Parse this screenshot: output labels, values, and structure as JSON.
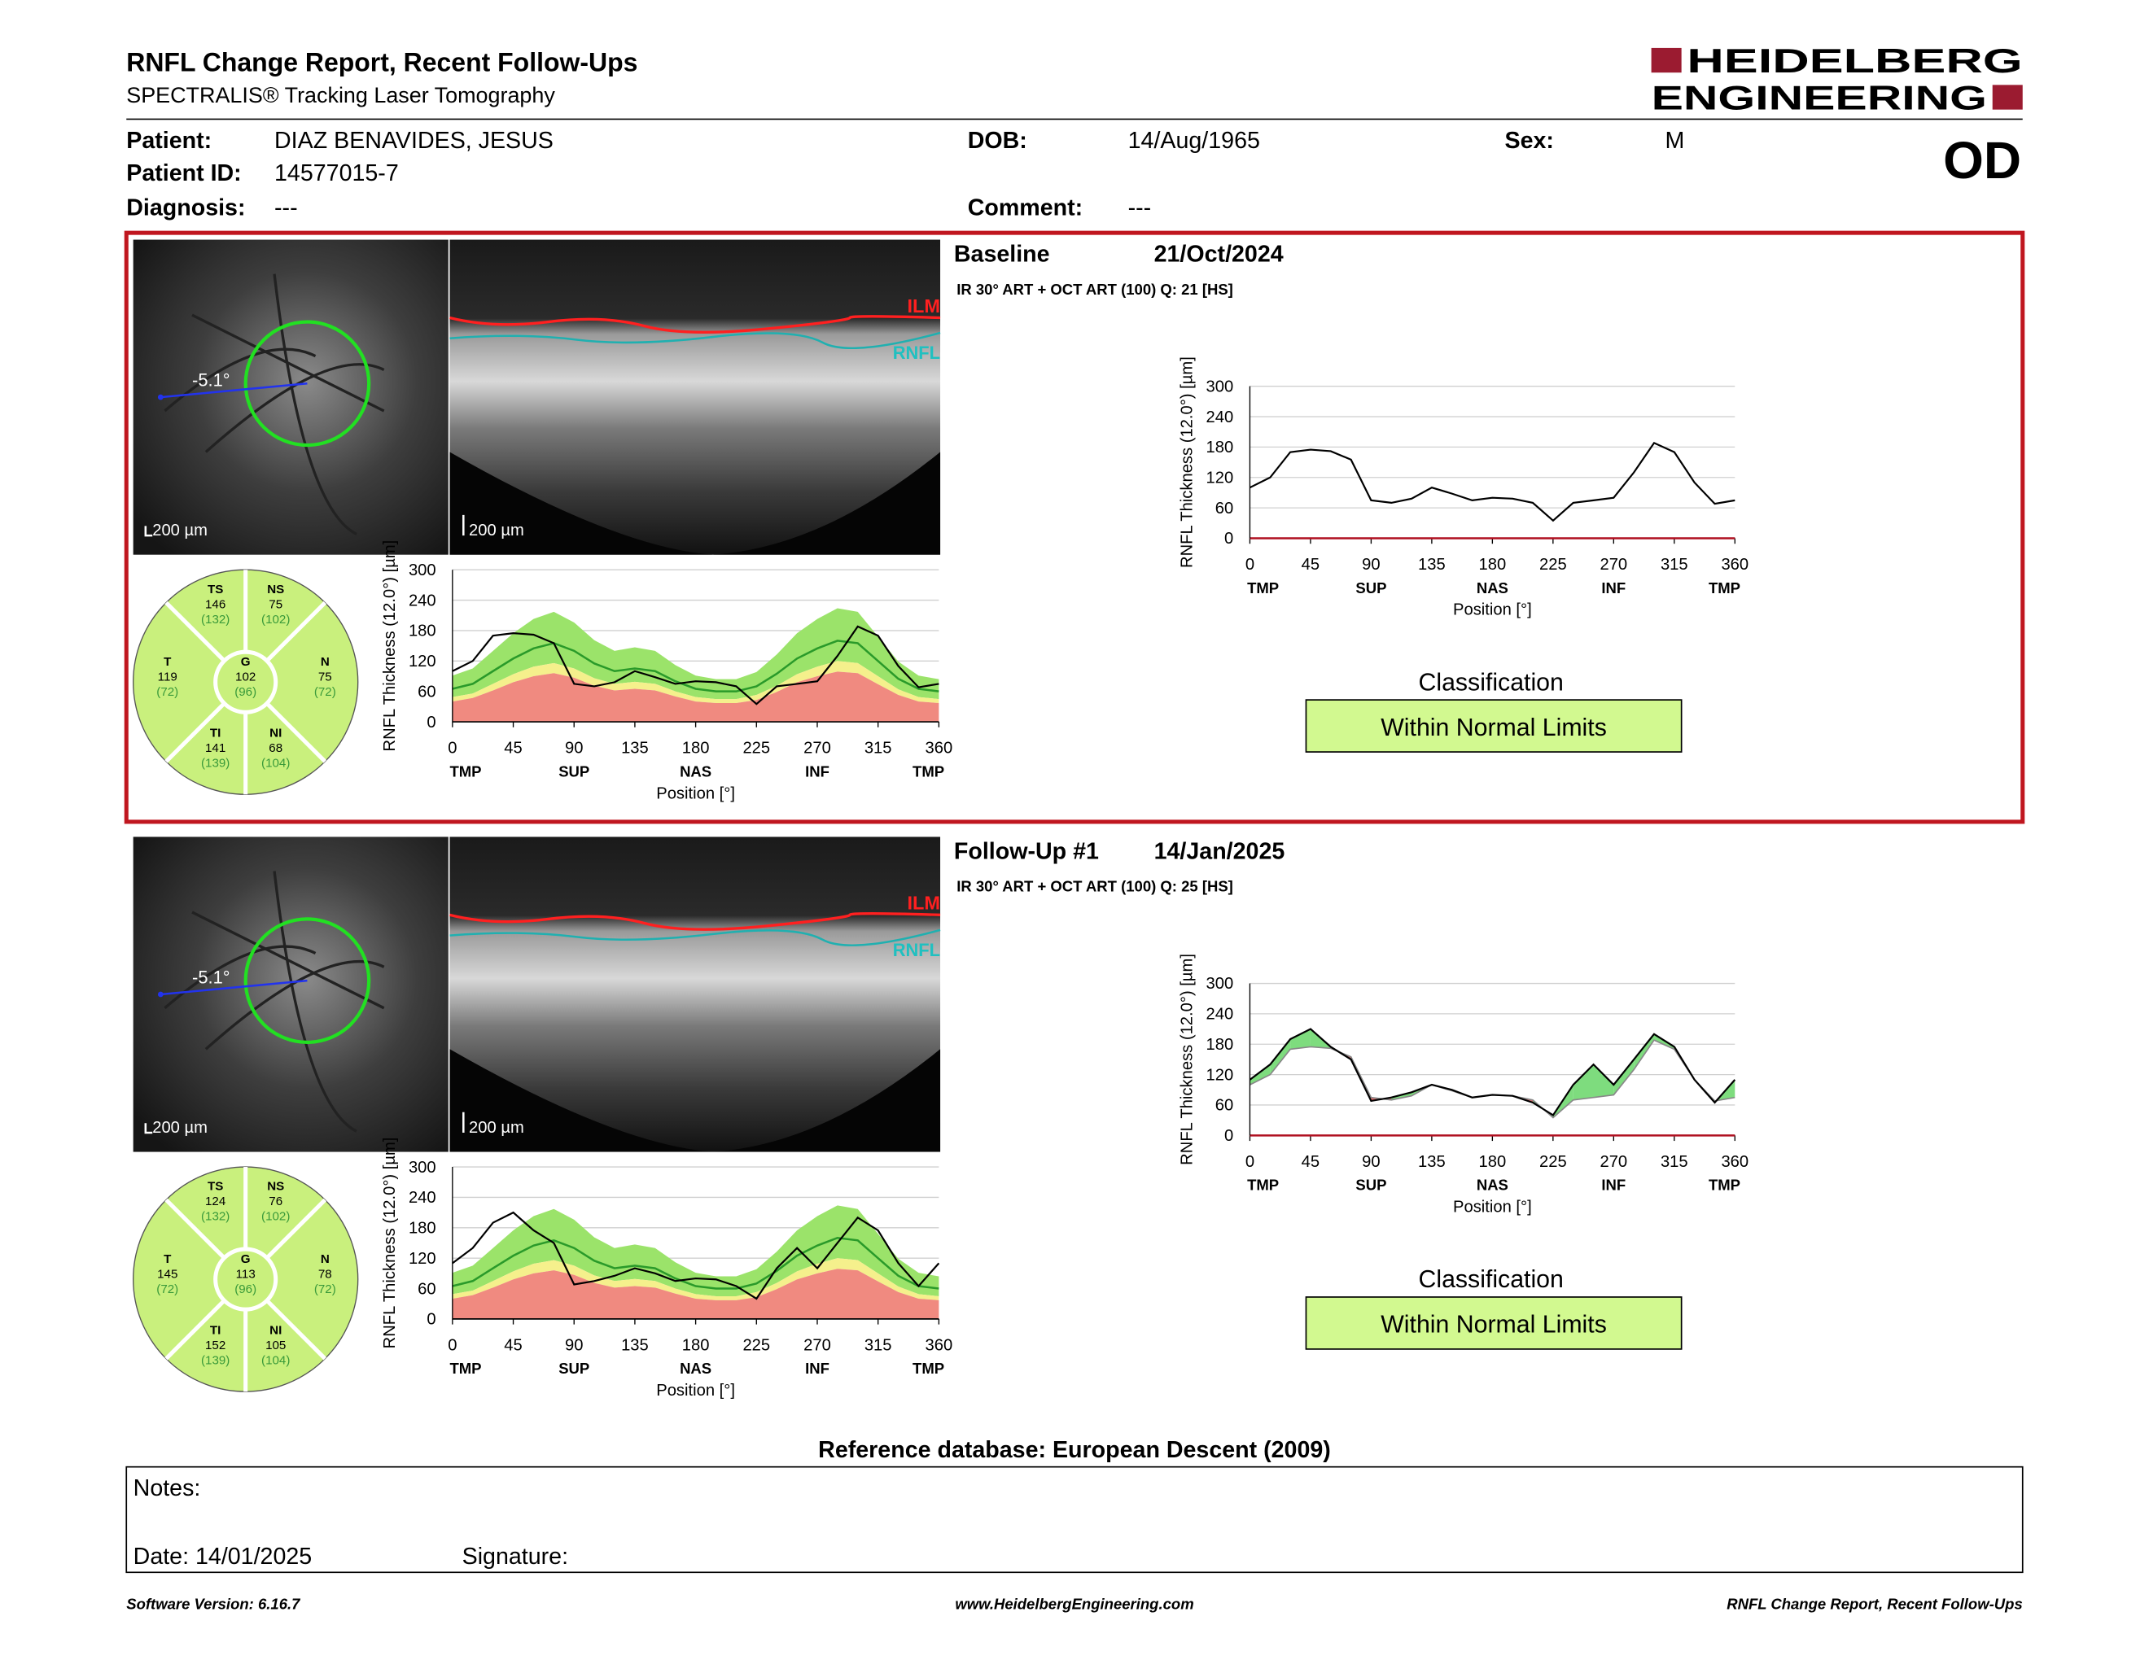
{
  "header": {
    "title": "RNFL Change Report, Recent Follow-Ups",
    "subtitle": "SPECTRALIS® Tracking Laser Tomography",
    "logo_line1": "HEIDELBERG",
    "logo_line2": "ENGINEERING",
    "eye": "OD"
  },
  "patient": {
    "patient_label": "Patient:",
    "patient": "DIAZ BENAVIDES, JESUS",
    "id_label": "Patient ID:",
    "id": "14577015-7",
    "diagnosis_label": "Diagnosis:",
    "diagnosis": "---",
    "dob_label": "DOB:",
    "dob": "14/Aug/1965",
    "comment_label": "Comment:",
    "comment": "---",
    "sex_label": "Sex:",
    "sex": "M"
  },
  "chart_settings": {
    "y_label": "RNFL Thickness (12.0°) [µm]",
    "x_label": "Position [°]",
    "ylim": [
      0,
      300
    ],
    "yticks": [
      0,
      60,
      120,
      180,
      240,
      300
    ],
    "xlim": [
      0,
      360
    ],
    "xticks": [
      0,
      45,
      90,
      135,
      180,
      225,
      270,
      315,
      360
    ],
    "region_ticks": [
      {
        "value": 0,
        "label": "TMP"
      },
      {
        "value": 90,
        "label": "SUP"
      },
      {
        "value": 180,
        "label": "NAS"
      },
      {
        "value": 270,
        "label": "INF"
      },
      {
        "value": 360,
        "label": "TMP"
      }
    ],
    "x": [
      0,
      15,
      30,
      45,
      60,
      75,
      90,
      105,
      120,
      135,
      150,
      165,
      180,
      195,
      210,
      225,
      240,
      255,
      270,
      285,
      300,
      315,
      330,
      345,
      360
    ],
    "normal_mean": [
      65,
      75,
      100,
      125,
      145,
      155,
      140,
      115,
      100,
      105,
      100,
      80,
      65,
      60,
      60,
      70,
      95,
      125,
      145,
      160,
      155,
      120,
      85,
      65,
      60
    ],
    "normal_upper": [
      91,
      105,
      140,
      175,
      203,
      217,
      196,
      161,
      140,
      147,
      140,
      112,
      91,
      84,
      84,
      98,
      133,
      175,
      203,
      224,
      217,
      168,
      119,
      91,
      84
    ],
    "borderline_upper": [
      49,
      56,
      75,
      94,
      109,
      116,
      105,
      86,
      75,
      79,
      75,
      60,
      49,
      45,
      45,
      53,
      71,
      94,
      109,
      120,
      116,
      90,
      64,
      49,
      45
    ],
    "outside_upper": [
      40,
      47,
      62,
      78,
      90,
      96,
      87,
      71,
      62,
      65,
      62,
      50,
      40,
      37,
      37,
      43,
      59,
      78,
      90,
      99,
      96,
      74,
      53,
      40,
      37
    ],
    "colors": {
      "normal": "#9be36a",
      "borderline": "#f5f08c",
      "outside": "#f08a80",
      "mean": "#2a9a2a",
      "patient": "#000000",
      "increase": "#7edc7e",
      "decrease": "#e26a6a",
      "sector": "#c9f07d"
    }
  },
  "exams": [
    {
      "label": "Baseline",
      "date": "21/Oct/2024",
      "scan": "IR 30° ART + OCT ART (100) Q: 21 [HS]",
      "angle": "-5.1°",
      "scale_bar": "200 µm",
      "ilm": "ILM",
      "rnfl": "RNFL",
      "classification_label": "Classification",
      "classification": "Within Normal Limits",
      "sectors": [
        {
          "name": "TS",
          "value": 146,
          "reference": "(132)"
        },
        {
          "name": "NS",
          "value": 75,
          "reference": "(102)"
        },
        {
          "name": "T",
          "value": 119,
          "reference": "(72)"
        },
        {
          "name": "G",
          "value": 102,
          "reference": "(96)"
        },
        {
          "name": "N",
          "value": 75,
          "reference": "(72)"
        },
        {
          "name": "TI",
          "value": 141,
          "reference": "(139)"
        },
        {
          "name": "NI",
          "value": 68,
          "reference": "(104)"
        }
      ],
      "thickness": [
        100,
        120,
        170,
        175,
        172,
        155,
        75,
        70,
        78,
        100,
        88,
        75,
        80,
        78,
        70,
        35,
        70,
        75,
        80,
        130,
        188,
        170,
        110,
        68,
        75
      ]
    },
    {
      "label": "Follow-Up #1",
      "date": "14/Jan/2025",
      "scan": "IR 30° ART + OCT ART (100) Q: 25 [HS]",
      "angle": "-5.1°",
      "scale_bar": "200 µm",
      "ilm": "ILM",
      "rnfl": "RNFL",
      "classification_label": "Classification",
      "classification": "Within Normal Limits",
      "sectors": [
        {
          "name": "TS",
          "value": 124,
          "reference": "(132)"
        },
        {
          "name": "NS",
          "value": 76,
          "reference": "(102)"
        },
        {
          "name": "T",
          "value": 145,
          "reference": "(72)"
        },
        {
          "name": "G",
          "value": 113,
          "reference": "(96)"
        },
        {
          "name": "N",
          "value": 78,
          "reference": "(72)"
        },
        {
          "name": "TI",
          "value": 152,
          "reference": "(139)"
        },
        {
          "name": "NI",
          "value": 105,
          "reference": "(104)"
        }
      ],
      "thickness": [
        110,
        140,
        190,
        210,
        175,
        150,
        68,
        75,
        85,
        100,
        90,
        75,
        80,
        78,
        65,
        40,
        100,
        140,
        100,
        150,
        200,
        175,
        110,
        65,
        110
      ]
    }
  ],
  "reference_database": "Reference database: European Descent (2009)",
  "notes": {
    "notes_label": "Notes:",
    "date": "Date: 14/01/2025",
    "signature_label": "Signature:"
  },
  "footer": {
    "left": "Software Version: 6.16.7",
    "center": "www.HeidelbergEngineering.com",
    "right": "RNFL Change Report, Recent Follow-Ups"
  }
}
